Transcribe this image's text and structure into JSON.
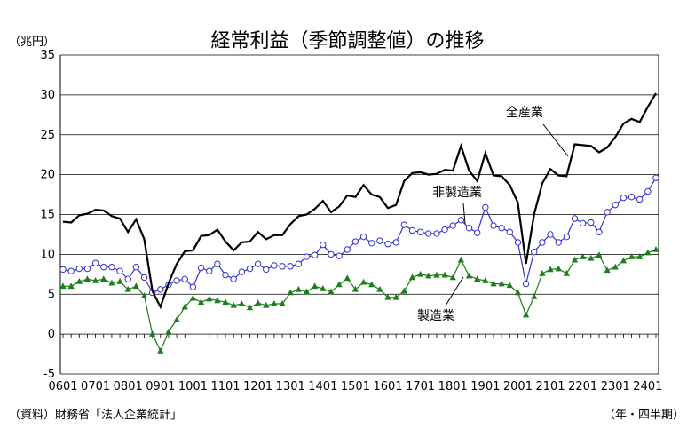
{
  "chart_data": {
    "type": "line",
    "title": "経常利益（季節調整値）の推移",
    "ylabel": "（兆円）",
    "xlabel": "（年・四半期）",
    "source": "（資料）財務省「法人企業統計」",
    "ylim": [
      -5,
      35
    ],
    "yticks": [
      -5,
      0,
      5,
      10,
      15,
      20,
      25,
      30,
      35
    ],
    "grid": "horizontal",
    "x": [
      "0601",
      "0602",
      "0603",
      "0604",
      "0701",
      "0702",
      "0703",
      "0704",
      "0801",
      "0802",
      "0803",
      "0804",
      "0901",
      "0902",
      "0903",
      "0904",
      "1001",
      "1002",
      "1003",
      "1004",
      "1101",
      "1102",
      "1103",
      "1104",
      "1201",
      "1202",
      "1203",
      "1204",
      "1301",
      "1302",
      "1303",
      "1304",
      "1401",
      "1402",
      "1403",
      "1404",
      "1501",
      "1502",
      "1503",
      "1504",
      "1601",
      "1602",
      "1603",
      "1604",
      "1701",
      "1702",
      "1703",
      "1704",
      "1801",
      "1802",
      "1803",
      "1804",
      "1901",
      "1902",
      "1903",
      "1904",
      "2001",
      "2002",
      "2003",
      "2004",
      "2101",
      "2102",
      "2103",
      "2104",
      "2201",
      "2202",
      "2203",
      "2204",
      "2301",
      "2302",
      "2303",
      "2304",
      "2401",
      "2402"
    ],
    "xtick_labels": [
      "0601",
      "0701",
      "0801",
      "0901",
      "1001",
      "1101",
      "1201",
      "1301",
      "1401",
      "1501",
      "1601",
      "1701",
      "1801",
      "1901",
      "2001",
      "2101",
      "2201",
      "2301",
      "2401"
    ],
    "series": [
      {
        "name": "全産業",
        "color": "#000000",
        "marker": "none",
        "values": [
          14.1,
          14.0,
          14.9,
          15.1,
          15.6,
          15.5,
          14.8,
          14.5,
          12.8,
          14.4,
          11.9,
          5.4,
          3.4,
          6.4,
          8.8,
          10.4,
          10.5,
          12.3,
          12.4,
          13.1,
          11.6,
          10.5,
          11.5,
          11.6,
          12.8,
          11.9,
          12.4,
          12.4,
          13.8,
          14.8,
          15.0,
          15.7,
          16.7,
          15.3,
          16.0,
          17.4,
          17.2,
          18.7,
          17.5,
          17.2,
          15.8,
          16.2,
          19.2,
          20.2,
          20.3,
          20.0,
          20.1,
          20.6,
          20.5,
          23.6,
          20.5,
          19.2,
          22.7,
          19.9,
          19.8,
          18.7,
          16.5,
          8.8,
          15.0,
          18.9,
          20.7,
          19.9,
          19.8,
          23.8,
          23.7,
          23.6,
          22.8,
          23.4,
          24.7,
          26.4,
          27.0,
          26.6,
          28.5,
          30.2
        ]
      },
      {
        "name": "非製造業",
        "color": "#3333cc",
        "marker": "circle",
        "values": [
          8.1,
          7.9,
          8.2,
          8.2,
          8.9,
          8.4,
          8.4,
          7.9,
          6.9,
          8.4,
          7.1,
          5.2,
          5.6,
          6.2,
          6.7,
          6.9,
          5.9,
          8.3,
          7.9,
          8.8,
          7.4,
          6.9,
          7.8,
          8.2,
          8.8,
          8.1,
          8.6,
          8.5,
          8.5,
          8.8,
          9.7,
          9.9,
          11.2,
          10.0,
          9.8,
          10.6,
          11.6,
          12.2,
          11.4,
          11.7,
          11.3,
          11.5,
          13.7,
          13.0,
          12.8,
          12.6,
          12.6,
          13.1,
          13.6,
          14.3,
          13.3,
          12.7,
          15.9,
          13.6,
          13.3,
          12.8,
          11.5,
          6.3,
          10.3,
          11.5,
          12.5,
          11.5,
          12.2,
          14.5,
          13.9,
          14.0,
          12.8,
          15.3,
          16.2,
          17.1,
          17.2,
          16.9,
          17.9,
          19.6
        ]
      },
      {
        "name": "製造業",
        "color": "#1a7f1a",
        "marker": "triangle",
        "values": [
          6.0,
          6.0,
          6.6,
          6.9,
          6.7,
          6.9,
          6.4,
          6.6,
          5.6,
          6.0,
          4.8,
          0.0,
          -2.1,
          0.3,
          1.8,
          3.4,
          4.5,
          4.0,
          4.4,
          4.2,
          4.0,
          3.6,
          3.8,
          3.3,
          3.9,
          3.6,
          3.8,
          3.8,
          5.2,
          5.6,
          5.3,
          6.0,
          5.7,
          5.3,
          6.2,
          7.0,
          5.6,
          6.5,
          6.2,
          5.6,
          4.6,
          4.6,
          5.4,
          7.1,
          7.5,
          7.3,
          7.4,
          7.4,
          7.1,
          9.3,
          7.3,
          6.9,
          6.7,
          6.3,
          6.3,
          6.1,
          5.2,
          2.4,
          4.7,
          7.6,
          8.1,
          8.2,
          7.6,
          9.3,
          9.7,
          9.5,
          9.9,
          8.0,
          8.4,
          9.2,
          9.7,
          9.7,
          10.2,
          10.6
        ]
      }
    ],
    "annotations": [
      {
        "text": "全産業",
        "series": 0
      },
      {
        "text": "非製造業",
        "series": 1
      },
      {
        "text": "製造業",
        "series": 2
      }
    ]
  }
}
